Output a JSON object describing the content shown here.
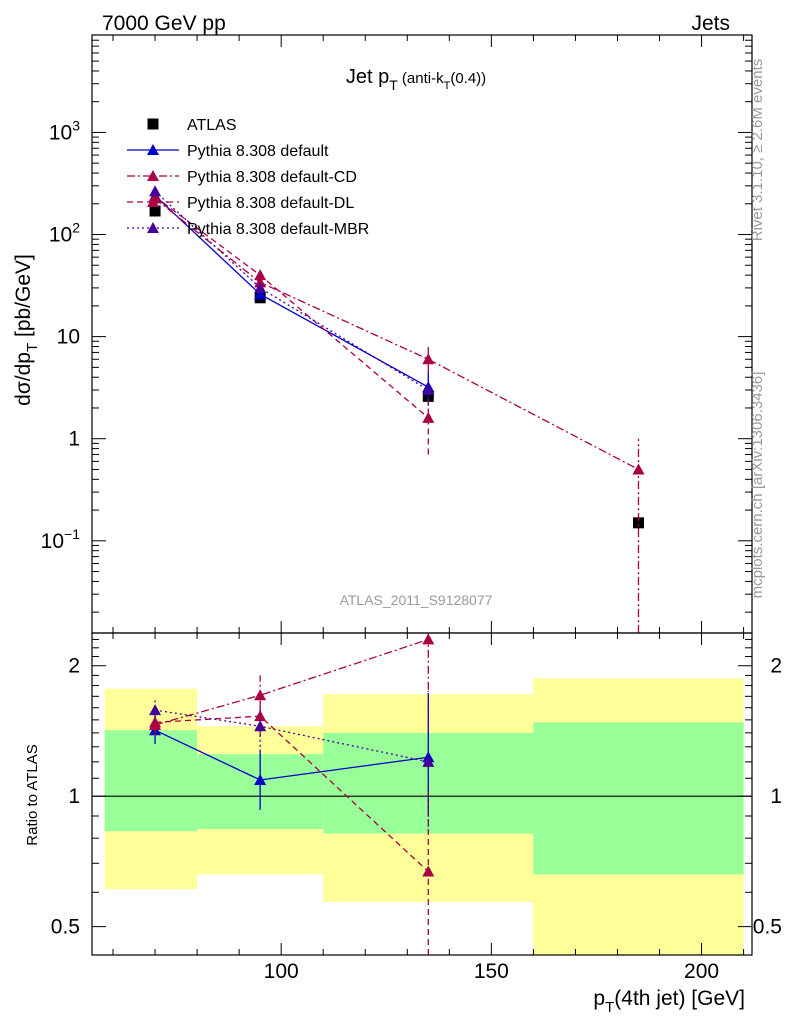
{
  "header": {
    "left": "7000 GeV pp",
    "right": "Jets"
  },
  "title": {
    "main": "Jet p",
    "sub": "T",
    "suffix": " (anti-k",
    "suffix_sub": "T",
    "suffix_end": "(0.4))"
  },
  "side_labels": {
    "rivet": "Rivet 3.1.10, ≥ 2.6M events",
    "mcplots": "mcplots.cern.ch [arXiv:1306.3436]"
  },
  "analysis_id": "ATLAS_2011_S9128077",
  "ylabel_main": {
    "a": "dσ/dp",
    "sub": "T",
    "b": " [pb/GeV]"
  },
  "ylabel_ratio": "Ratio to ATLAS",
  "xlabel": {
    "a": "p",
    "sub": "T",
    "b": "(4th jet) [GeV]"
  },
  "colors": {
    "atlas": "#000000",
    "default": "#0000cc",
    "cd": "#aa0044",
    "dl": "#aa0044",
    "mbr": "#440099",
    "band_inner": "#99ff99",
    "band_outer": "#ffff99"
  },
  "chart_data": [
    {
      "type": "scatter",
      "scale": "log",
      "xlim": [
        55,
        212
      ],
      "ylim": [
        0.0125,
        9000
      ],
      "x_ticks": [
        100,
        150,
        200
      ],
      "y_ticks": [
        {
          "v": 0.1,
          "l": "10",
          "e": "−1"
        },
        {
          "v": 1,
          "l": "1",
          "e": ""
        },
        {
          "v": 10,
          "l": "10",
          "e": ""
        },
        {
          "v": 100,
          "l": "10",
          "e": "2"
        },
        {
          "v": 1000,
          "l": "10",
          "e": "3"
        }
      ],
      "series": [
        {
          "name": "ATLAS",
          "key": "atlas",
          "marker": "square",
          "dash": "none",
          "points": [
            {
              "x": 70,
              "y": 170,
              "lo": 150,
              "hi": 190
            },
            {
              "x": 95,
              "y": 24,
              "lo": 22,
              "hi": 26
            },
            {
              "x": 135,
              "y": 2.6,
              "lo": 2.2,
              "hi": 3.0
            },
            {
              "x": 185,
              "y": 0.15,
              "lo": 0.13,
              "hi": 0.17
            }
          ]
        },
        {
          "name": "Pythia 8.308 default",
          "key": "default",
          "marker": "triangle",
          "dash": "none",
          "points": [
            {
              "x": 70,
              "y": 240,
              "lo": 220,
              "hi": 260
            },
            {
              "x": 95,
              "y": 26,
              "lo": 24,
              "hi": 29
            },
            {
              "x": 135,
              "y": 3.2,
              "lo": 2.2,
              "hi": 4.6
            }
          ]
        },
        {
          "name": "Pythia 8.308 default-CD",
          "key": "cd",
          "marker": "triangle",
          "dash": "8,3,2,3",
          "points": [
            {
              "x": 70,
              "y": 225,
              "lo": 205,
              "hi": 245
            },
            {
              "x": 95,
              "y": 34,
              "lo": 30,
              "hi": 39
            },
            {
              "x": 135,
              "y": 6.0,
              "lo": 4.6,
              "hi": 8.0
            },
            {
              "x": 185,
              "y": 0.5,
              "lo": 0.012,
              "hi": 1.0
            }
          ]
        },
        {
          "name": "Pythia 8.308 default-DL",
          "key": "dl",
          "marker": "triangle",
          "dash": "6,4",
          "points": [
            {
              "x": 70,
              "y": 235,
              "lo": 215,
              "hi": 255
            },
            {
              "x": 95,
              "y": 40,
              "lo": 36,
              "hi": 45
            },
            {
              "x": 135,
              "y": 1.6,
              "lo": 0.7,
              "hi": 2.6
            }
          ]
        },
        {
          "name": "Pythia 8.308 default-MBR",
          "key": "mbr",
          "marker": "triangle",
          "dash": "2,3",
          "points": [
            {
              "x": 70,
              "y": 265,
              "lo": 245,
              "hi": 285
            },
            {
              "x": 95,
              "y": 30,
              "lo": 27,
              "hi": 33
            },
            {
              "x": 135,
              "y": 3.0,
              "lo": 2.1,
              "hi": 4.2
            }
          ]
        }
      ]
    },
    {
      "type": "scatter",
      "scale": "log",
      "xlim": [
        55,
        212
      ],
      "ylim": [
        0.43,
        2.38
      ],
      "x_ticks": [
        100,
        150,
        200
      ],
      "y_ticks": [
        {
          "v": 0.5,
          "l": "0.5"
        },
        {
          "v": 1,
          "l": "1"
        },
        {
          "v": 2,
          "l": "2"
        }
      ],
      "bands": [
        {
          "x0": 58,
          "x1": 80,
          "inner": [
            0.83,
            1.42
          ],
          "outer": [
            0.61,
            1.77
          ]
        },
        {
          "x0": 80,
          "x1": 110,
          "inner": [
            0.84,
            1.25
          ],
          "outer": [
            0.66,
            1.45
          ]
        },
        {
          "x0": 110,
          "x1": 160,
          "inner": [
            0.82,
            1.4
          ],
          "outer": [
            0.57,
            1.72
          ]
        },
        {
          "x0": 160,
          "x1": 210,
          "inner": [
            0.66,
            1.48
          ],
          "outer": [
            0.33,
            1.87
          ]
        }
      ],
      "series": [
        {
          "name": "Pythia 8.308 default",
          "key": "default",
          "dash": "none",
          "points": [
            {
              "x": 70,
              "y": 1.42,
              "lo": 1.32,
              "hi": 1.52
            },
            {
              "x": 95,
              "y": 1.09,
              "lo": 0.93,
              "hi": 1.28
            },
            {
              "x": 135,
              "y": 1.23,
              "lo": 0.9,
              "hi": 1.73
            }
          ]
        },
        {
          "name": "Pythia 8.308 default-CD",
          "key": "cd",
          "dash": "8,3,2,3",
          "points": [
            {
              "x": 70,
              "y": 1.46,
              "lo": 1.38,
              "hi": 1.55
            },
            {
              "x": 95,
              "y": 1.71,
              "lo": 1.55,
              "hi": 1.9
            },
            {
              "x": 135,
              "y": 2.3,
              "lo": 1.76,
              "hi": 3.0
            }
          ]
        },
        {
          "name": "Pythia 8.308 default-DL",
          "key": "dl",
          "dash": "6,4",
          "points": [
            {
              "x": 70,
              "y": 1.48,
              "lo": 1.4,
              "hi": 1.56
            },
            {
              "x": 95,
              "y": 1.53,
              "lo": 1.37,
              "hi": 1.7
            },
            {
              "x": 135,
              "y": 0.67,
              "lo": 0.3,
              "hi": 1.05
            }
          ]
        },
        {
          "name": "Pythia 8.308 default-MBR",
          "key": "mbr",
          "dash": "2,3",
          "points": [
            {
              "x": 70,
              "y": 1.58,
              "lo": 1.48,
              "hi": 1.68
            },
            {
              "x": 95,
              "y": 1.45,
              "lo": 1.3,
              "hi": 1.6
            },
            {
              "x": 135,
              "y": 1.2,
              "lo": 0.85,
              "hi": 1.75
            }
          ]
        }
      ]
    }
  ]
}
